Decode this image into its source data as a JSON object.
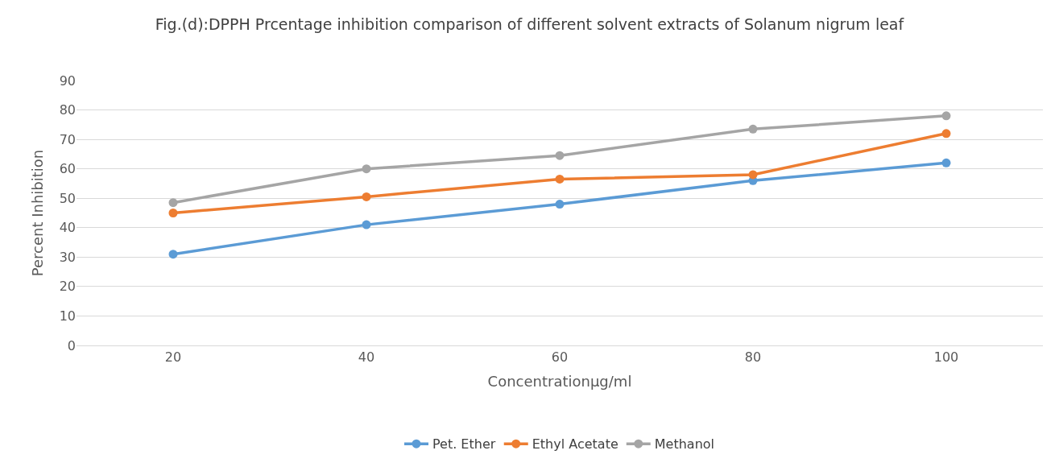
{
  "chart_data": {
    "type": "line",
    "title": "Fig.(d):DPPH Prcentage inhibition comparison of different solvent extracts of Solanum nigrum leaf",
    "xlabel": "Concentrationµg/ml",
    "ylabel": "Percent Inhibition",
    "categories": [
      "20",
      "40",
      "60",
      "80",
      "100"
    ],
    "series": [
      {
        "name": "Pet. Ether",
        "color": "#5b9bd5",
        "values": [
          31,
          41,
          48,
          56,
          62
        ]
      },
      {
        "name": "Ethyl Acetate",
        "color": "#ed7d31",
        "values": [
          45,
          50.5,
          56.5,
          58,
          72
        ]
      },
      {
        "name": "Methanol",
        "color": "#a5a5a5",
        "values": [
          48.5,
          60,
          64.5,
          73.5,
          78
        ]
      }
    ],
    "ylim": [
      0,
      90
    ],
    "yticks": [
      0,
      10,
      20,
      30,
      40,
      50,
      60,
      70,
      80,
      90
    ],
    "grid": "y",
    "legend": "bottom",
    "marker": "circle",
    "line_style": "solid"
  }
}
